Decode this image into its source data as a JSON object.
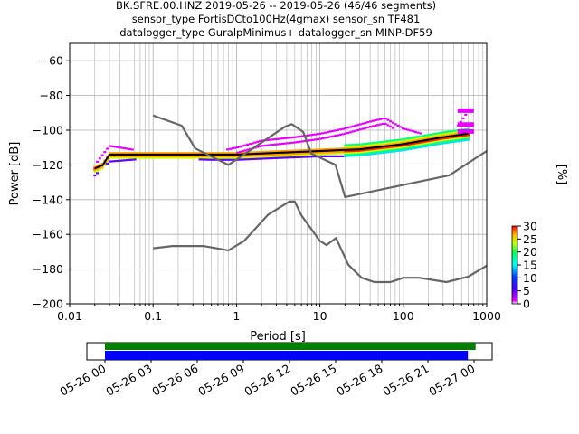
{
  "title_lines": [
    "BK.SFRE.00.HNZ   2019-05-26 -- 2019-05-26  (46/46 segments)",
    "sensor_type FortisDCto100Hz(4gmax) sensor_sn TF481",
    "datalogger_type GuralpMinimus+ datalogger_sn MINP-DF59"
  ],
  "colorbar": {
    "label": "[%]",
    "ticks": [
      "30",
      "25",
      "20",
      "15",
      "10",
      "5",
      "0"
    ],
    "range": [
      0,
      30
    ]
  },
  "colors": {
    "ppsd_magenta": "#e800ff",
    "mode_line": "#000000",
    "noise_model": "#666666",
    "timeline_green": "#008000",
    "timeline_blue": "#0000ff"
  },
  "chart_data": {
    "type": "ppsd",
    "xlabel": "Period [s]",
    "ylabel": "Power [dB]",
    "xscale": "log",
    "xlim": [
      0.01,
      1000
    ],
    "ylim": [
      -200,
      -50
    ],
    "xticks": [
      "0.01",
      "0.1",
      "1",
      "10",
      "100",
      "1000"
    ],
    "yticks": [
      "-60",
      "-80",
      "-100",
      "-120",
      "-140",
      "-160",
      "-180",
      "-200"
    ],
    "grid": true,
    "series": [
      {
        "name": "",
        "style": "mode",
        "x": [
          0.02,
          0.025,
          0.03,
          0.04,
          0.1,
          0.3,
          1,
          3,
          10,
          30,
          100,
          300,
          600
        ],
        "y": [
          -122,
          -120,
          -114,
          -114,
          -114,
          -114,
          -114,
          -113,
          -112,
          -111,
          -108,
          -104,
          -102
        ]
      },
      {
        "name": "",
        "style": "noise-model-high",
        "x": [
          0.1,
          0.22,
          0.32,
          0.8,
          3.8,
          4.6,
          6.3,
          7.9,
          15.4,
          20,
          354.8,
          1000
        ],
        "y": [
          -91.5,
          -97.4,
          -110.5,
          -120,
          -98,
          -96.5,
          -101,
          -113.5,
          -120,
          -138.5,
          -126,
          -112
        ]
      },
      {
        "name": "",
        "style": "noise-model-low",
        "x": [
          0.1,
          0.17,
          0.4,
          0.8,
          1.24,
          2.4,
          4.3,
          5,
          6,
          10,
          12,
          15.6,
          21.9,
          31.6,
          45,
          70,
          101,
          154,
          328,
          600,
          1000
        ],
        "y": [
          -168,
          -166.7,
          -166.7,
          -169.2,
          -163.7,
          -148.6,
          -141.1,
          -141.1,
          -149,
          -163.8,
          -166.2,
          -162.1,
          -177.5,
          -185,
          -187.5,
          -187.5,
          -185,
          -185,
          -187.5,
          -184.4,
          -178
        ]
      },
      {
        "name": "",
        "style": "ppsd-upper-envelope",
        "x": [
          0.02,
          0.03,
          0.1,
          0.5,
          1,
          2,
          5,
          10,
          20,
          40,
          60,
          100,
          200,
          400,
          600
        ],
        "y": [
          -120,
          -109,
          -113,
          -113,
          -110,
          -106,
          -104,
          -102,
          -99,
          -95,
          -93,
          -99,
          -103,
          -101,
          -89
        ]
      },
      {
        "name": "",
        "style": "ppsd-lower-envelope",
        "x": [
          0.02,
          0.03,
          0.1,
          0.5,
          1,
          3,
          10,
          30,
          100,
          300,
          600
        ],
        "y": [
          -126,
          -118,
          -116,
          -117,
          -117,
          -116,
          -115,
          -115,
          -112,
          -107,
          -106
        ]
      }
    ],
    "timeline": {
      "type": "timeline",
      "xticks": [
        "05-26 00",
        "05-26 03",
        "05-26 06",
        "05-26 09",
        "05-26 12",
        "05-26 15",
        "05-26 18",
        "05-26 21",
        "05-27 00"
      ],
      "bars": [
        {
          "color": "green",
          "start_hours": 0,
          "end_hours": 24.1
        },
        {
          "color": "blue",
          "start_hours": 0,
          "end_hours": 23.6
        }
      ]
    }
  }
}
